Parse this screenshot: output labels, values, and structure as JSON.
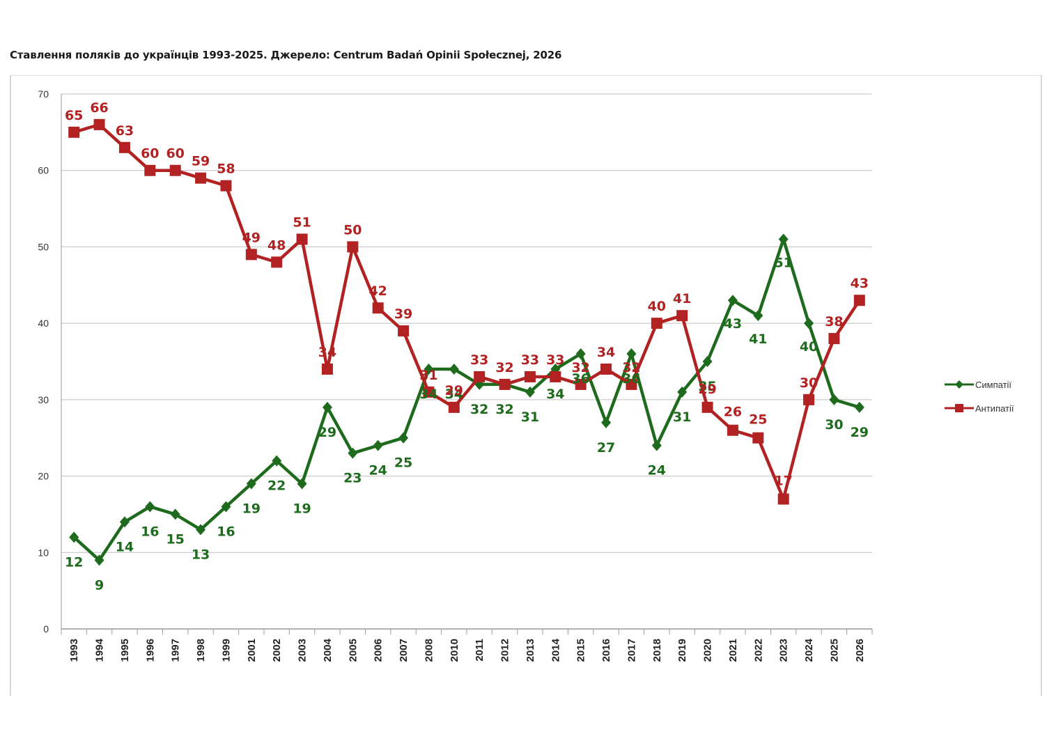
{
  "title": "Ставлення поляків до українців 1993-2025. Джерело: Centrum Badań Opinii Społecznej, 2026",
  "chart_data": {
    "type": "line",
    "title": "Ставлення поляків до українців 1993-2025. Джерело: Centrum Badań Opinii Społecznej, 2026",
    "xlabel": "",
    "ylabel": "",
    "ylim": [
      0,
      70
    ],
    "yticks": [
      0,
      10,
      20,
      30,
      40,
      50,
      60,
      70
    ],
    "grid": true,
    "legend_position": "right",
    "categories": [
      "1993",
      "1994",
      "1995",
      "1996",
      "1997",
      "1998",
      "1999",
      "2001",
      "2002",
      "2003",
      "2004",
      "2005",
      "2006",
      "2007",
      "2008",
      "2010",
      "2011",
      "2012",
      "2013",
      "2014",
      "2015",
      "2016",
      "2017",
      "2018",
      "2019",
      "2020",
      "2021",
      "2022",
      "2023",
      "2024",
      "2025",
      "2026"
    ],
    "series": [
      {
        "name": "Симпатії",
        "color": "#1e6b1e",
        "marker": "diamond",
        "values": [
          12,
          9,
          14,
          16,
          15,
          13,
          16,
          19,
          22,
          19,
          29,
          23,
          24,
          25,
          34,
          34,
          32,
          32,
          31,
          34,
          36,
          27,
          36,
          24,
          31,
          35,
          43,
          41,
          51,
          40,
          30,
          29
        ],
        "labels": [
          "12",
          "9",
          "14",
          "16",
          "15",
          "13",
          "16",
          "19",
          "22",
          "19",
          "29",
          "23",
          "24",
          "25",
          "34",
          "34",
          "32",
          "32",
          "31",
          "34",
          "36",
          "27",
          "36",
          "24",
          "31",
          "35",
          "43",
          "41",
          "51",
          "40",
          "30",
          "29"
        ]
      },
      {
        "name": "Антипатії",
        "color": "#b22222",
        "marker": "square",
        "values": [
          65,
          66,
          63,
          60,
          60,
          59,
          58,
          49,
          48,
          51,
          34,
          50,
          42,
          39,
          31,
          29,
          33,
          32,
          33,
          33,
          32,
          34,
          32,
          40,
          41,
          29,
          26,
          25,
          17,
          30,
          38,
          43
        ],
        "labels": [
          "65",
          "66",
          "63",
          "60",
          "60",
          "59",
          "58",
          "49",
          "48",
          "51",
          "34",
          "50",
          "42",
          "39",
          "31",
          "29",
          "33",
          "32",
          "33",
          "33",
          "32",
          "34",
          "32",
          "40",
          "41",
          "29",
          "26",
          "25",
          "17",
          "30",
          "38",
          "43"
        ]
      }
    ]
  }
}
